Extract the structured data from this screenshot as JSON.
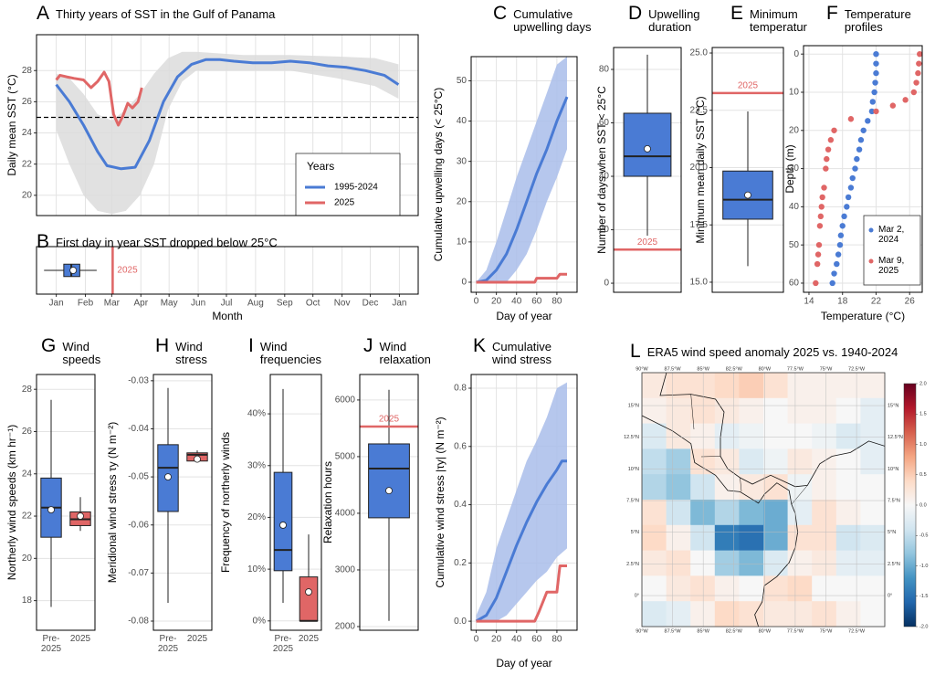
{
  "chart_data": [
    {
      "type": "line",
      "letter": "A",
      "title": "Thirty years of SST in the Gulf of Panama",
      "ylabel": "Daily mean SST (°C)",
      "xlim": [
        -20,
        386
      ],
      "ylim": [
        18.7,
        30.3
      ],
      "yticks": [
        20,
        22,
        24,
        26,
        28
      ],
      "xticks": [
        1,
        32,
        60,
        91,
        121,
        152,
        182,
        213,
        244,
        274,
        305,
        335,
        366
      ],
      "xtick_labels": false,
      "grid": true,
      "threshold": 25,
      "band": {
        "color": "#dcdcdc",
        "x": [
          1,
          15,
          30,
          45,
          60,
          75,
          90,
          105,
          120,
          135,
          150,
          200,
          250,
          300,
          340,
          365
        ],
        "lower": [
          24.2,
          22.0,
          20.0,
          19.0,
          18.8,
          19.0,
          20.0,
          22.0,
          25.5,
          27.3,
          28.0,
          28.0,
          28.0,
          27.5,
          27.0,
          26.2
        ],
        "upper": [
          27.8,
          27.5,
          26.5,
          25.2,
          24.8,
          25.5,
          26.5,
          27.8,
          28.8,
          29.2,
          29.2,
          29.0,
          29.0,
          28.9,
          28.8,
          28.4
        ]
      },
      "legend_title": "Years",
      "series": [
        {
          "name": "1995-2024",
          "color": "#4a7bd4",
          "x": [
            1,
            15,
            30,
            45,
            55,
            70,
            85,
            100,
            115,
            130,
            145,
            160,
            175,
            190,
            210,
            230,
            250,
            270,
            290,
            310,
            330,
            350,
            365
          ],
          "values": [
            27.1,
            26.0,
            24.5,
            22.8,
            21.9,
            21.7,
            21.8,
            23.5,
            26.0,
            27.6,
            28.4,
            28.7,
            28.7,
            28.6,
            28.5,
            28.5,
            28.6,
            28.5,
            28.3,
            28.2,
            28.0,
            27.7,
            27.1
          ]
        },
        {
          "name": "2025",
          "color": "#e06666",
          "x": [
            1,
            5,
            12,
            20,
            30,
            38,
            45,
            52,
            57,
            62,
            67,
            72,
            77,
            82,
            88,
            92
          ],
          "values": [
            27.4,
            27.7,
            27.6,
            27.5,
            27.4,
            26.9,
            27.3,
            27.9,
            27.3,
            25.2,
            24.5,
            25.1,
            25.9,
            25.6,
            26.0,
            26.9
          ]
        }
      ]
    },
    {
      "type": "boxplot",
      "orientation": "horizontal",
      "letter": "B",
      "title": "First day in year SST dropped below 25°C",
      "xlabel": "Month",
      "xlim": [
        -20,
        386
      ],
      "grid": true,
      "xticks": [
        {
          "value": 1,
          "label": "Jan"
        },
        {
          "value": 32,
          "label": "Feb"
        },
        {
          "value": 60,
          "label": "Mar"
        },
        {
          "value": 91,
          "label": "Apr"
        },
        {
          "value": 121,
          "label": "May"
        },
        {
          "value": 152,
          "label": "Jun"
        },
        {
          "value": 182,
          "label": "Jul"
        },
        {
          "value": 213,
          "label": "Aug"
        },
        {
          "value": 244,
          "label": "Sep"
        },
        {
          "value": 274,
          "label": "Oct"
        },
        {
          "value": 305,
          "label": "Nov"
        },
        {
          "value": 335,
          "label": "Dec"
        },
        {
          "value": 366,
          "label": "Jan"
        }
      ],
      "colors": [
        "#4a7bd4"
      ],
      "boxes": [
        {
          "min": -12,
          "q1": 9,
          "median": 17,
          "q3": 26,
          "max": 44,
          "mean": 19
        }
      ],
      "reference": {
        "value": 61,
        "label": "2025",
        "color": "#e06666"
      }
    },
    {
      "type": "line",
      "letter": "C",
      "title": "Cumulative upwelling days",
      "ylabel": "Cumulative upwelling days (< 25°C)",
      "xlabel": "Day of year",
      "xlim": [
        -5,
        100
      ],
      "ylim": [
        -2.5,
        56
      ],
      "xticks": [
        0,
        20,
        40,
        60,
        80
      ],
      "yticks": [
        0,
        10,
        20,
        30,
        40,
        50
      ],
      "grid": true,
      "band": {
        "color": "#a9bdea",
        "x": [
          0,
          10,
          20,
          30,
          40,
          50,
          60,
          70,
          80,
          90
        ],
        "lower": [
          0,
          0,
          0,
          0,
          3,
          7,
          13,
          20,
          26,
          33
        ],
        "upper": [
          0,
          3,
          10,
          18,
          26,
          33,
          40,
          47,
          54,
          56
        ]
      },
      "series": [
        {
          "name": "1995-2024",
          "color": "#4a7bd4",
          "x": [
            0,
            10,
            20,
            30,
            40,
            50,
            60,
            70,
            80,
            90
          ],
          "values": [
            0,
            0.5,
            3,
            7,
            13,
            20,
            27,
            33,
            40,
            46
          ]
        },
        {
          "name": "2025",
          "color": "#e06666",
          "x": [
            0,
            58,
            60,
            80,
            83,
            90
          ],
          "values": [
            0,
            0,
            1,
            1,
            2,
            2
          ]
        }
      ]
    },
    {
      "type": "boxplot",
      "orientation": "vertical",
      "letter": "D",
      "title": "Upwelling duration",
      "ylabel": "Number of days when SST < 25°C",
      "ylim": [
        -3.4,
        88.2
      ],
      "yticks": [
        0,
        20,
        40,
        60,
        80
      ],
      "grid": true,
      "colors": [
        "#4a7bd4"
      ],
      "boxes": [
        {
          "min": 17.8,
          "q1": 40,
          "median": 47.5,
          "q3": 63.6,
          "max": 85.5,
          "mean": 50.3
        }
      ],
      "reference": {
        "value": 12.6,
        "label": "2025",
        "color": "#e06666"
      }
    },
    {
      "type": "boxplot",
      "orientation": "vertical",
      "letter": "E",
      "title": "Minimum temperature",
      "ylabel": "Minimum mean daily SST (°C)",
      "ylim": [
        14.56,
        25.24
      ],
      "yticks": [
        {
          "value": 15,
          "label": "15.0"
        },
        17.5,
        {
          "value": 20,
          "label": "20.0"
        },
        22.5,
        {
          "value": 25,
          "label": "25.0"
        }
      ],
      "grid": true,
      "colors": [
        "#4a7bd4"
      ],
      "boxes": [
        {
          "min": 15.7,
          "q1": 17.75,
          "median": 18.6,
          "q3": 19.85,
          "max": 22.45,
          "mean": 18.8
        }
      ],
      "reference": {
        "value": 23.25,
        "label": "2025",
        "color": "#e06666"
      }
    },
    {
      "type": "scatter",
      "letter": "F",
      "title": "Temperature profiles",
      "xlabel": "Temperature (°C)",
      "ylabel": "Depth (m)",
      "xlim": [
        13.35,
        27.5
      ],
      "ylim": [
        62.4,
        -2.2
      ],
      "xticks": [
        14,
        18,
        22,
        26
      ],
      "yticks": [
        0,
        10,
        20,
        30,
        40,
        50,
        60
      ],
      "grid": true,
      "series": [
        {
          "name": "Mar 2, 2024",
          "color": "#4a7bd4",
          "x": [
            22,
            22,
            22,
            21.9,
            21.8,
            21.6,
            21.5,
            21.0,
            20.5,
            20.2,
            20.0,
            19.7,
            19.5,
            19.2,
            19.0,
            18.7,
            18.5,
            18.2,
            18.0,
            17.8,
            17.7,
            17.5,
            17.3,
            17.0,
            16.8
          ],
          "values": [
            0,
            2.5,
            5,
            7.5,
            10,
            12.5,
            15,
            17.5,
            20,
            22.5,
            25,
            27.5,
            30,
            32.5,
            35,
            37.5,
            40,
            42.5,
            45,
            47.5,
            50,
            52.5,
            55,
            57.5,
            60
          ]
        },
        {
          "name": "Mar 9, 2025",
          "color": "#e06666",
          "x": [
            27.2,
            27.1,
            27.0,
            26.8,
            26.5,
            25.5,
            24.0,
            22.0,
            19.0,
            17.0,
            16.6,
            16.3,
            16.1,
            16.0,
            15.8,
            15.6,
            15.5,
            15.4,
            15.3,
            15.2,
            15.1,
            15.0,
            14.8
          ],
          "values": [
            0,
            2.5,
            5,
            7.5,
            10,
            12,
            13.5,
            15,
            17,
            20,
            22.5,
            25,
            27.5,
            30,
            35,
            37.5,
            40,
            42.5,
            45,
            50,
            52.5,
            55,
            60
          ]
        }
      ]
    },
    {
      "type": "boxplot",
      "orientation": "vertical",
      "letter": "G",
      "title": "Wind speeds",
      "ylabel": "Northerly wind speeds (km hr⁻¹)",
      "ylim": [
        16.6,
        28.7
      ],
      "yticks": [
        18,
        20,
        22,
        24,
        26,
        28
      ],
      "grid": true,
      "categories": [
        "Pre- 2025",
        "2025"
      ],
      "colors": [
        "#4a7bd4",
        "#e06666"
      ],
      "boxes": [
        {
          "min": 17.7,
          "q1": 21.0,
          "median": 22.4,
          "q3": 23.8,
          "max": 27.5,
          "mean": 22.3
        },
        {
          "min": 21.3,
          "q1": 21.55,
          "median": 21.85,
          "q3": 22.2,
          "max": 22.9,
          "mean": 22.0
        }
      ]
    },
    {
      "type": "boxplot",
      "orientation": "vertical",
      "letter": "H",
      "title": "Wind stress",
      "ylabel": "Meridional wind stress τy (N m⁻²)",
      "ylim": [
        -0.0819,
        -0.0287
      ],
      "yticks": [
        -0.03,
        -0.04,
        -0.05,
        -0.06,
        -0.07,
        -0.08
      ],
      "grid": true,
      "categories": [
        "Pre- 2025",
        "2025"
      ],
      "colors": [
        "#4a7bd4",
        "#e06666"
      ],
      "boxes": [
        {
          "min": -0.0762,
          "q1": -0.0572,
          "median": -0.0481,
          "q3": -0.0433,
          "max": -0.0315,
          "mean": -0.05
        },
        {
          "min": -0.047,
          "q1": -0.0467,
          "median": -0.0454,
          "q3": -0.045,
          "max": -0.0445,
          "mean": -0.0463
        }
      ]
    },
    {
      "type": "boxplot",
      "orientation": "vertical",
      "letter": "I",
      "title": "Wind frequencies",
      "ylabel": "Frequency of northerly winds",
      "ylim": [
        -1.8,
        47.6
      ],
      "yticks": [
        {
          "value": 0,
          "label": "0%"
        },
        {
          "value": 10,
          "label": "10%"
        },
        {
          "value": 20,
          "label": "20%"
        },
        {
          "value": 30,
          "label": "30%"
        },
        {
          "value": 40,
          "label": "40%"
        }
      ],
      "grid": true,
      "categories": [
        "Pre- 2025",
        "2025"
      ],
      "colors": [
        "#4a7bd4",
        "#e06666"
      ],
      "boxes": [
        {
          "min": 3.5,
          "q1": 9.7,
          "median": 13.7,
          "q3": 28.7,
          "max": 44.8,
          "mean": 18.5
        },
        {
          "min": 0,
          "q1": 0,
          "median": 0,
          "q3": 8.5,
          "max": 16.7,
          "mean": 5.6
        }
      ]
    },
    {
      "type": "boxplot",
      "orientation": "vertical",
      "letter": "J",
      "title": "Wind relaxation",
      "ylabel": "Relaxation hours",
      "ylim": [
        1935,
        6450
      ],
      "yticks": [
        2000,
        3000,
        4000,
        5000,
        6000
      ],
      "grid": true,
      "colors": [
        "#4a7bd4"
      ],
      "boxes": [
        {
          "min": 2100,
          "q1": 3920,
          "median": 4790,
          "q3": 5225,
          "max": 6180,
          "mean": 4400
        }
      ],
      "reference": {
        "value": 5530,
        "label": "2025",
        "color": "#e06666"
      }
    },
    {
      "type": "line",
      "letter": "K",
      "title": "Cumulative wind stress",
      "ylabel": "Cumulative wind stress |τy| (N m⁻²)",
      "xlabel": "Day of year",
      "xlim": [
        -5,
        100
      ],
      "ylim": [
        -0.031,
        0.847
      ],
      "xticks": [
        0,
        20,
        40,
        60,
        80
      ],
      "yticks": [
        {
          "value": 0,
          "label": "0.0"
        },
        0.2,
        0.4,
        0.6,
        0.8
      ],
      "grid": true,
      "band": {
        "color": "#a9bdea",
        "x": [
          0,
          10,
          20,
          30,
          40,
          50,
          60,
          70,
          80,
          90
        ],
        "lower": [
          0,
          0,
          0,
          0.02,
          0.06,
          0.1,
          0.14,
          0.17,
          0.22,
          0.25
        ],
        "upper": [
          0.02,
          0.1,
          0.25,
          0.35,
          0.45,
          0.55,
          0.62,
          0.7,
          0.8,
          0.82
        ]
      },
      "series": [
        {
          "name": "1995-2024",
          "color": "#4a7bd4",
          "x": [
            0,
            10,
            20,
            30,
            40,
            50,
            60,
            70,
            80,
            85,
            90
          ],
          "values": [
            0,
            0.02,
            0.08,
            0.17,
            0.26,
            0.34,
            0.41,
            0.47,
            0.52,
            0.55,
            0.55
          ]
        },
        {
          "name": "2025",
          "color": "#e06666",
          "x": [
            0,
            58,
            62,
            70,
            80,
            83,
            90
          ],
          "values": [
            0,
            0,
            0.03,
            0.1,
            0.1,
            0.19,
            0.19
          ]
        }
      ]
    },
    {
      "type": "heatmap",
      "letter": "L",
      "title": "ERA5 wind speed anomaly 2025 vs. 1940-2024",
      "xlim": [
        -90,
        -70.2
      ],
      "ylim": [
        -2.45,
        17.6
      ],
      "grid": true,
      "xticks": [
        {
          "value": -90,
          "label": "90°W"
        },
        {
          "value": -87.5,
          "label": "87.5°W"
        },
        {
          "value": -85,
          "label": "85°W"
        },
        {
          "value": -82.5,
          "label": "82.5°W"
        },
        {
          "value": -80,
          "label": "80°W"
        },
        {
          "value": -77.5,
          "label": "77.5°W"
        },
        {
          "value": -75,
          "label": "75°W"
        },
        {
          "value": -72.5,
          "label": "72.5°W"
        }
      ],
      "yticks": [
        {
          "value": 15,
          "label": "15°N"
        },
        {
          "value": 12.5,
          "label": "12.5°N"
        },
        {
          "value": 10,
          "label": "10°N"
        },
        {
          "value": 7.5,
          "label": "7.5°N"
        },
        {
          "value": 5,
          "label": "5°N"
        },
        {
          "value": 2.5,
          "label": "2.5°N"
        },
        {
          "value": 0,
          "label": "0°"
        }
      ],
      "clim": [
        -2,
        2
      ],
      "cticks": [
        {
          "value": 2,
          "label": "2.0"
        },
        1.5,
        {
          "value": 1,
          "label": "1.0"
        },
        0.5,
        {
          "value": 0,
          "label": "0.0"
        },
        -0.5,
        {
          "value": -1,
          "label": "-1.0"
        },
        -1.5,
        {
          "value": -2,
          "label": "-2.0"
        }
      ],
      "colormap": [
        "#053061",
        "#2166ac",
        "#4393c3",
        "#92c5de",
        "#d1e5f0",
        "#f7f7f7",
        "#fddbc7",
        "#f4a582",
        "#d6604d",
        "#b2182b",
        "#67001f"
      ],
      "z": [
        [
          0.2,
          0.3,
          0.3,
          0.4,
          0.5,
          0.3,
          0.1,
          0.1,
          0.1,
          0.1
        ],
        [
          0.1,
          0.2,
          0.3,
          0.2,
          0.1,
          0.0,
          0.1,
          0.1,
          0.0,
          -0.2
        ],
        [
          -0.3,
          0.2,
          0.1,
          -0.2,
          -0.1,
          0.0,
          0.0,
          -0.1,
          -0.3,
          -0.2
        ],
        [
          -0.5,
          -0.7,
          0.3,
          0.2,
          -0.3,
          -0.1,
          0.2,
          0.1,
          0.0,
          -0.2
        ],
        [
          -0.6,
          -0.8,
          -0.4,
          0.1,
          0.2,
          0.3,
          -0.1,
          0.1,
          0.0,
          0.0
        ],
        [
          0.3,
          -0.4,
          -0.9,
          -0.6,
          -0.9,
          -1.0,
          -0.2,
          0.3,
          0.1,
          0.0
        ],
        [
          0.4,
          0.1,
          -0.4,
          -1.4,
          -1.5,
          -1.0,
          0.3,
          0.3,
          -0.4,
          -0.3
        ],
        [
          0.2,
          0.3,
          0.0,
          -0.7,
          -0.9,
          -0.3,
          0.1,
          0.2,
          -0.2,
          -0.2
        ],
        [
          0.0,
          0.2,
          0.3,
          0.1,
          0.0,
          0.3,
          0.4,
          0.0,
          0.0,
          0.0
        ],
        [
          -0.3,
          -0.2,
          0.1,
          0.4,
          0.3,
          0.2,
          0.2,
          0.3,
          0.1,
          0.0
        ]
      ]
    }
  ]
}
